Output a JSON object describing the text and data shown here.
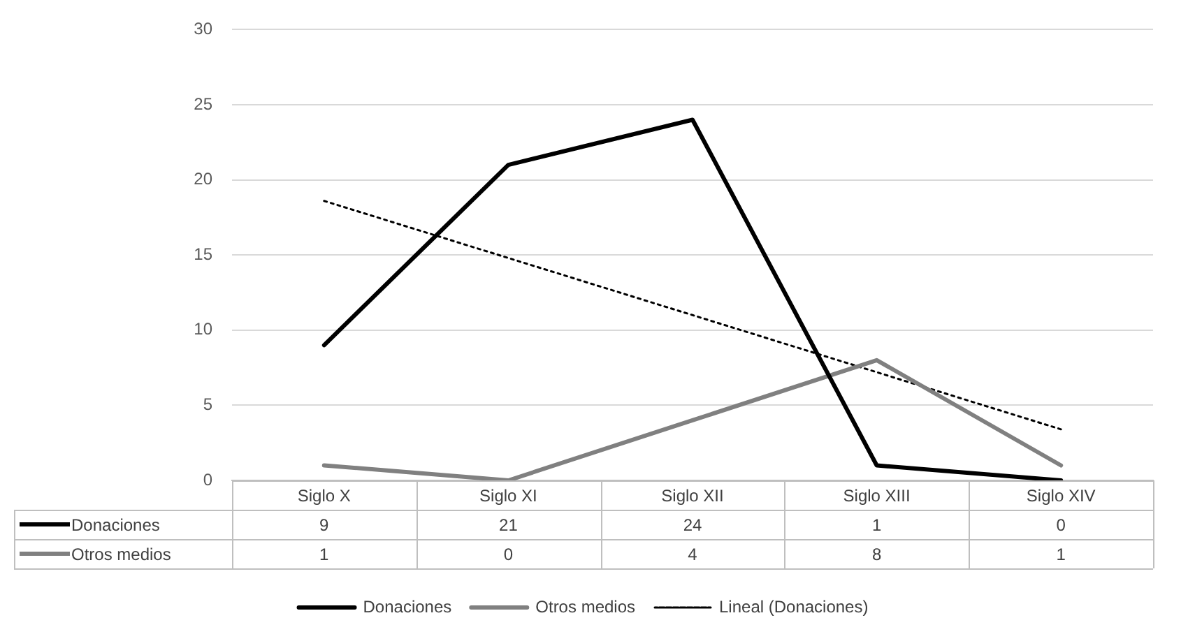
{
  "chart_data": {
    "type": "line",
    "categories": [
      "Siglo X",
      "Siglo XI",
      "Siglo XII",
      "Siglo XIII",
      "Siglo XIV"
    ],
    "series": [
      {
        "name": "Donaciones",
        "color": "#000000",
        "values": [
          9,
          21,
          24,
          1,
          0
        ],
        "value_labels": [
          "9",
          "21",
          "24",
          "1",
          "0"
        ]
      },
      {
        "name": "Otros medios",
        "color": "#808080",
        "values": [
          1,
          0,
          4,
          8,
          1
        ],
        "value_labels": [
          "1",
          "0",
          "4",
          "8",
          "1"
        ]
      },
      {
        "name": "Lineal (Donaciones)",
        "color": "#000000",
        "type": "line",
        "line_style": "dotted",
        "values": [
          18.6,
          14.8,
          11,
          7.2,
          3.4
        ]
      }
    ],
    "ylim": [
      0,
      30
    ],
    "yticks": [
      0,
      5,
      10,
      15,
      20,
      25,
      30
    ],
    "grid": "y",
    "legend": "bottom",
    "marker": "none",
    "line_style": "solid"
  }
}
